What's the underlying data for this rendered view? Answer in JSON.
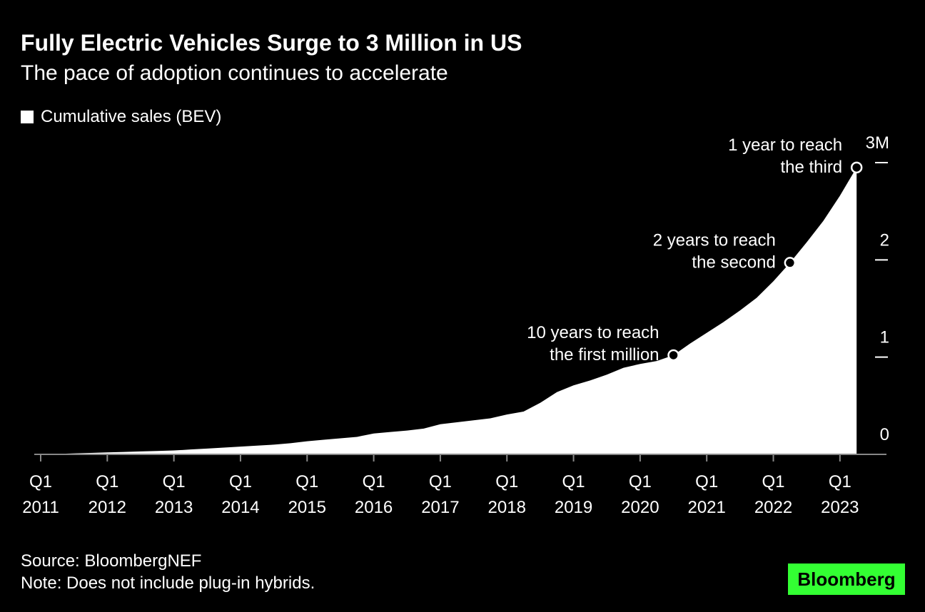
{
  "chart_data": {
    "type": "area",
    "title": "Fully Electric Vehicles Surge to 3 Million in US",
    "subtitle": "The pace of adoption continues to accelerate",
    "categories": [
      "Q1 2011",
      null,
      null,
      null,
      "Q1 2012",
      null,
      null,
      null,
      "Q1 2013",
      null,
      null,
      null,
      "Q1 2014",
      null,
      null,
      null,
      "Q1 2015",
      null,
      null,
      null,
      "Q1 2016",
      null,
      null,
      null,
      "Q1 2017",
      null,
      null,
      null,
      "Q1 2018",
      null,
      null,
      null,
      "Q1 2019",
      null,
      null,
      null,
      "Q1 2020",
      null,
      null,
      null,
      "Q1 2021",
      null,
      null,
      null,
      "Q1 2022",
      null,
      null,
      null,
      "Q1 2023",
      null
    ],
    "series": [
      {
        "name": "Cumulative sales (BEV)",
        "color": "#ffffff",
        "values": [
          0.002,
          0.005,
          0.01,
          0.015,
          0.02,
          0.025,
          0.03,
          0.035,
          0.04,
          0.05,
          0.06,
          0.07,
          0.08,
          0.09,
          0.1,
          0.115,
          0.135,
          0.15,
          0.165,
          0.18,
          0.215,
          0.23,
          0.245,
          0.265,
          0.31,
          0.33,
          0.35,
          0.37,
          0.41,
          0.44,
          0.53,
          0.64,
          0.71,
          0.76,
          0.82,
          0.89,
          0.93,
          0.96,
          1.02,
          1.14,
          1.25,
          1.36,
          1.48,
          1.61,
          1.78,
          1.97,
          2.18,
          2.4,
          2.66,
          2.95
        ]
      }
    ],
    "ylim": [
      0,
      3
    ],
    "yticks": [
      0,
      1,
      2,
      {
        "value": 3,
        "label": "3M"
      }
    ],
    "annotations": [
      {
        "lines": [
          "10 years to reach",
          "the first million"
        ]
      },
      {
        "lines": [
          "2 years to reach",
          "the second"
        ]
      },
      {
        "lines": [
          "1 year to reach",
          "the third"
        ]
      }
    ],
    "source": "Source: BloombergNEF",
    "note": "Note: Does not include plug-in hybrids.",
    "logo": "Bloomberg"
  }
}
